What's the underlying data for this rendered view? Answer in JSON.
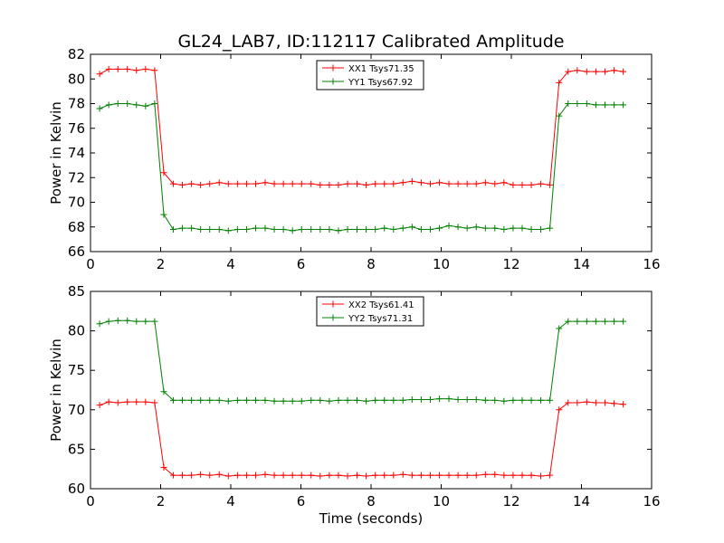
{
  "title": "GL24_LAB7, ID:112117 Calibrated Amplitude",
  "colors": {
    "red": "#ff0000",
    "green": "#008000",
    "axes": "#000000"
  },
  "chart_data": [
    {
      "type": "line",
      "title": "GL24_LAB7, ID:112117 Calibrated Amplitude",
      "xlabel": "",
      "ylabel": "Power in Kelvin",
      "xlim": [
        0,
        16
      ],
      "ylim": [
        66,
        82
      ],
      "xticks": [
        0,
        2,
        4,
        6,
        8,
        10,
        12,
        14,
        16
      ],
      "yticks": [
        66,
        68,
        70,
        72,
        74,
        76,
        78,
        80,
        82
      ],
      "grid": false,
      "legend_position": "top-center",
      "marker": "+",
      "x": [
        0.26,
        0.52,
        0.78,
        1.05,
        1.31,
        1.57,
        1.83,
        2.09,
        2.36,
        2.62,
        2.88,
        3.14,
        3.4,
        3.67,
        3.93,
        4.19,
        4.45,
        4.71,
        4.98,
        5.24,
        5.5,
        5.76,
        6.02,
        6.29,
        6.55,
        6.81,
        7.07,
        7.33,
        7.6,
        7.86,
        8.12,
        8.38,
        8.64,
        8.91,
        9.17,
        9.43,
        9.69,
        9.95,
        10.22,
        10.48,
        10.74,
        11.0,
        11.26,
        11.53,
        11.79,
        12.05,
        12.31,
        12.57,
        12.84,
        13.1,
        13.36,
        13.62,
        13.88,
        14.15,
        14.41,
        14.67,
        14.93,
        15.19
      ],
      "series": [
        {
          "name": "XX1 Tsys71.35",
          "color": "#ff0000",
          "values": [
            80.4,
            80.8,
            80.8,
            80.8,
            80.7,
            80.8,
            80.7,
            72.4,
            71.5,
            71.4,
            71.5,
            71.4,
            71.5,
            71.6,
            71.5,
            71.5,
            71.5,
            71.5,
            71.6,
            71.5,
            71.5,
            71.5,
            71.5,
            71.5,
            71.4,
            71.4,
            71.4,
            71.5,
            71.5,
            71.4,
            71.5,
            71.5,
            71.5,
            71.6,
            71.7,
            71.6,
            71.5,
            71.6,
            71.5,
            71.5,
            71.5,
            71.5,
            71.6,
            71.5,
            71.6,
            71.4,
            71.4,
            71.4,
            71.5,
            71.4,
            79.7,
            80.6,
            80.7,
            80.6,
            80.6,
            80.6,
            80.7,
            80.6
          ]
        },
        {
          "name": "YY1 Tsys67.92",
          "color": "#008000",
          "values": [
            77.6,
            77.9,
            78.0,
            78.0,
            77.9,
            77.8,
            78.0,
            69.0,
            67.8,
            67.9,
            67.9,
            67.8,
            67.8,
            67.8,
            67.7,
            67.8,
            67.8,
            67.9,
            67.9,
            67.8,
            67.8,
            67.7,
            67.8,
            67.8,
            67.8,
            67.8,
            67.7,
            67.8,
            67.8,
            67.8,
            67.8,
            67.9,
            67.8,
            67.9,
            68.0,
            67.8,
            67.8,
            67.9,
            68.1,
            68.0,
            67.9,
            68.0,
            67.9,
            67.9,
            67.8,
            67.9,
            67.9,
            67.8,
            67.8,
            67.9,
            77.0,
            78.0,
            78.0,
            78.0,
            77.9,
            77.9,
            77.9,
            77.9
          ]
        }
      ]
    },
    {
      "type": "line",
      "title": "",
      "xlabel": "Time (seconds)",
      "ylabel": "Power in Kelvin",
      "xlim": [
        0,
        16
      ],
      "ylim": [
        60,
        85
      ],
      "xticks": [
        0,
        2,
        4,
        6,
        8,
        10,
        12,
        14,
        16
      ],
      "yticks": [
        60,
        65,
        70,
        75,
        80,
        85
      ],
      "grid": false,
      "legend_position": "top-center",
      "marker": "+",
      "x": [
        0.26,
        0.52,
        0.78,
        1.05,
        1.31,
        1.57,
        1.83,
        2.09,
        2.36,
        2.62,
        2.88,
        3.14,
        3.4,
        3.67,
        3.93,
        4.19,
        4.45,
        4.71,
        4.98,
        5.24,
        5.5,
        5.76,
        6.02,
        6.29,
        6.55,
        6.81,
        7.07,
        7.33,
        7.6,
        7.86,
        8.12,
        8.38,
        8.64,
        8.91,
        9.17,
        9.43,
        9.69,
        9.95,
        10.22,
        10.48,
        10.74,
        11.0,
        11.26,
        11.53,
        11.79,
        12.05,
        12.31,
        12.57,
        12.84,
        13.1,
        13.36,
        13.62,
        13.88,
        14.15,
        14.41,
        14.67,
        14.93,
        15.19
      ],
      "series": [
        {
          "name": "XX2 Tsys61.41",
          "color": "#ff0000",
          "values": [
            70.6,
            71.0,
            70.9,
            71.0,
            71.0,
            71.0,
            70.9,
            62.7,
            61.7,
            61.7,
            61.7,
            61.8,
            61.7,
            61.8,
            61.6,
            61.7,
            61.7,
            61.7,
            61.8,
            61.7,
            61.7,
            61.7,
            61.7,
            61.7,
            61.6,
            61.7,
            61.7,
            61.6,
            61.7,
            61.6,
            61.7,
            61.7,
            61.7,
            61.8,
            61.7,
            61.7,
            61.7,
            61.7,
            61.7,
            61.7,
            61.7,
            61.7,
            61.8,
            61.8,
            61.7,
            61.7,
            61.7,
            61.7,
            61.6,
            61.7,
            70.0,
            70.9,
            70.9,
            71.0,
            70.9,
            70.9,
            70.8,
            70.7
          ]
        },
        {
          "name": "YY2 Tsys71.31",
          "color": "#008000",
          "values": [
            80.9,
            81.2,
            81.3,
            81.3,
            81.2,
            81.2,
            81.2,
            72.3,
            71.2,
            71.2,
            71.2,
            71.2,
            71.2,
            71.2,
            71.1,
            71.2,
            71.2,
            71.2,
            71.2,
            71.1,
            71.1,
            71.1,
            71.1,
            71.2,
            71.2,
            71.1,
            71.2,
            71.2,
            71.2,
            71.1,
            71.2,
            71.2,
            71.2,
            71.2,
            71.3,
            71.3,
            71.3,
            71.4,
            71.4,
            71.3,
            71.3,
            71.3,
            71.2,
            71.2,
            71.1,
            71.2,
            71.2,
            71.2,
            71.2,
            71.2,
            80.3,
            81.2,
            81.2,
            81.2,
            81.2,
            81.2,
            81.2,
            81.2
          ]
        }
      ]
    }
  ]
}
